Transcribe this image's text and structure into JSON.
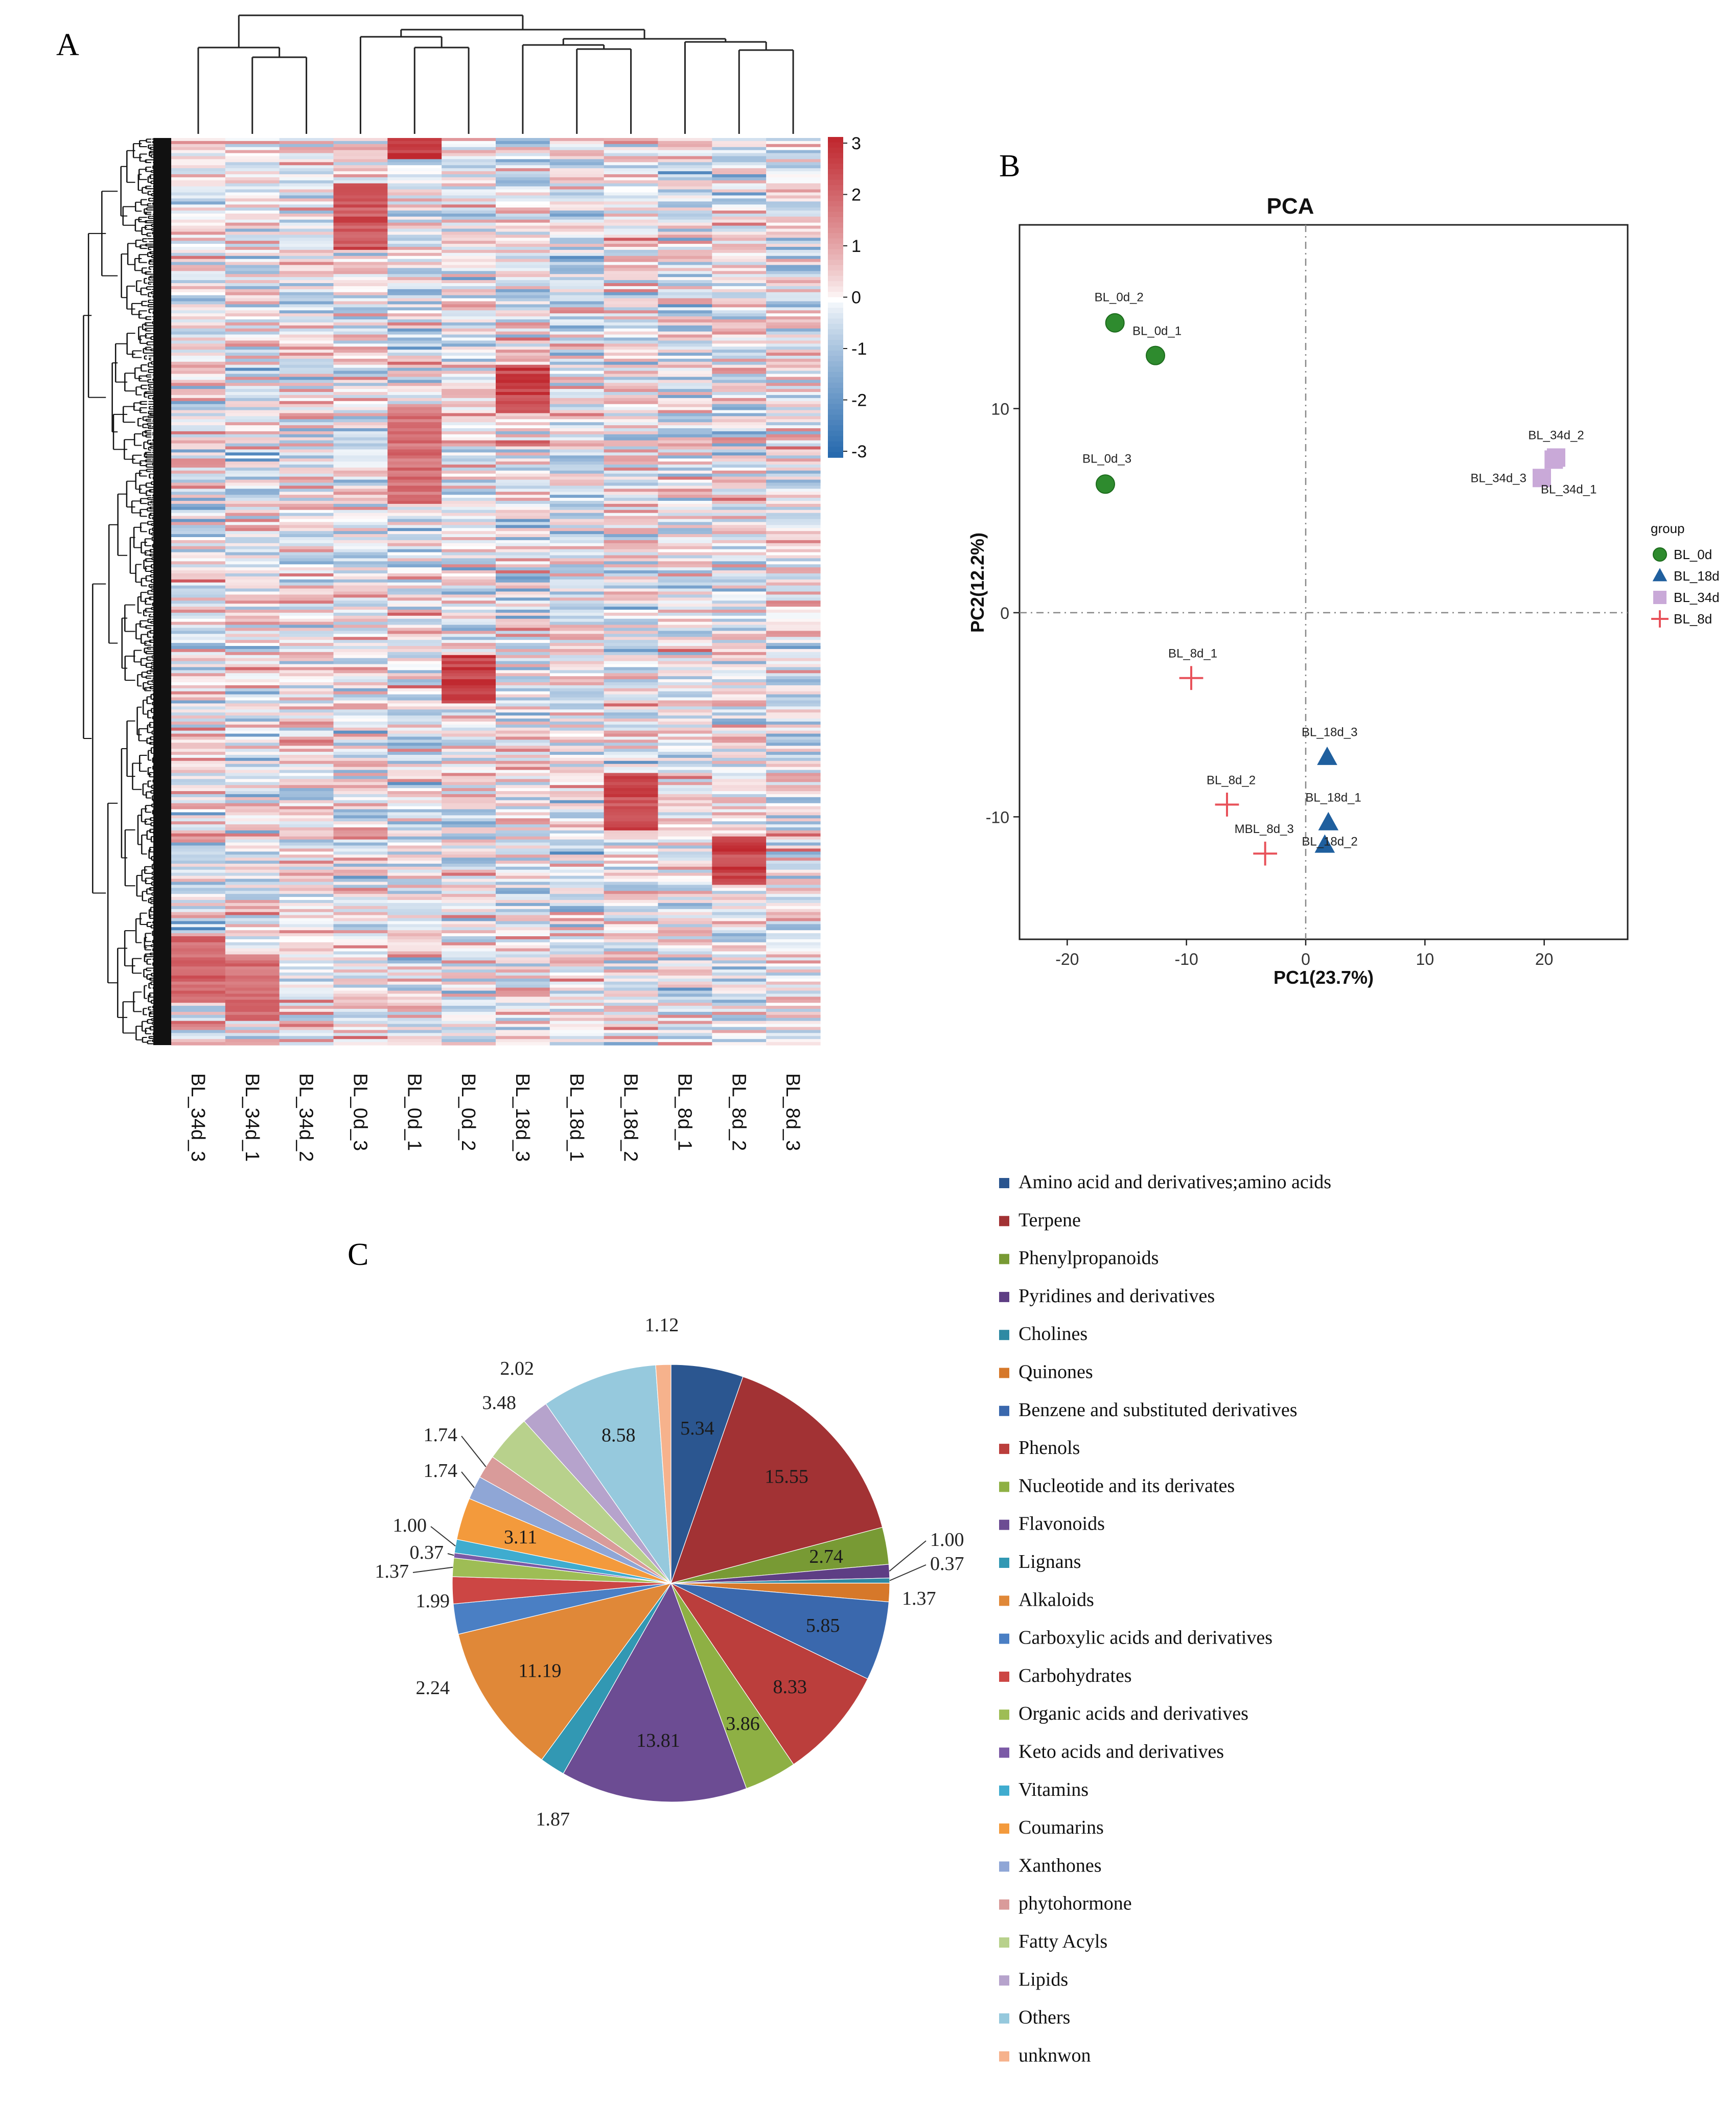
{
  "panels": {
    "a_label": "A",
    "b_label": "B",
    "c_label": "C"
  },
  "chart_data": [
    {
      "type": "heatmap",
      "title": "",
      "columns": [
        "BL_34d_3",
        "BL_34d_1",
        "BL_34d_2",
        "BL_0d_3",
        "BL_0d_1",
        "BL_0d_2",
        "BL_18d_3",
        "BL_18d_1",
        "BL_18d_2",
        "BL_8d_1",
        "BL_8d_2",
        "BL_8d_3"
      ],
      "colorbar": {
        "ticks": [
          "3",
          "2",
          "1",
          "0",
          "-1",
          "-2",
          "-3"
        ],
        "range": [
          -3,
          3
        ],
        "colors": [
          "#2166ac",
          "#ffffff",
          "#c0282f"
        ]
      },
      "n_rows": 300,
      "cluster_hotspots": [
        {
          "col": 4,
          "row_start": 0.0,
          "row_end": 0.02,
          "value": 3
        },
        {
          "col": 3,
          "row_start": 0.05,
          "row_end": 0.12,
          "value": 2.5
        },
        {
          "col": 6,
          "row_start": 0.25,
          "row_end": 0.3,
          "value": 2.8
        },
        {
          "col": 4,
          "row_start": 0.3,
          "row_end": 0.4,
          "value": 2
        },
        {
          "col": 5,
          "row_start": 0.57,
          "row_end": 0.62,
          "value": 3
        },
        {
          "col": 8,
          "row_start": 0.7,
          "row_end": 0.76,
          "value": 2.6
        },
        {
          "col": 10,
          "row_start": 0.77,
          "row_end": 0.82,
          "value": 2.8
        },
        {
          "col": 0,
          "row_start": 0.88,
          "row_end": 0.95,
          "value": 2.2
        },
        {
          "col": 1,
          "row_start": 0.9,
          "row_end": 0.97,
          "value": 2
        }
      ]
    },
    {
      "type": "scatter",
      "title": "PCA",
      "xlabel": "PC1(23.7%)",
      "ylabel": "PC2(12.2%)",
      "xlim": [
        -24,
        27
      ],
      "ylim": [
        -16,
        19
      ],
      "xticks": [
        -20,
        -10,
        0,
        10,
        20
      ],
      "yticks": [
        10,
        0,
        -10
      ],
      "legend_title": "group",
      "legend_position": "right",
      "series": [
        {
          "name": "BL_0d",
          "color": "#2e8b2e",
          "marker": "circle",
          "points": [
            {
              "label": "BL_0d_2",
              "x": -16,
              "y": 14.2
            },
            {
              "label": "BL_0d_1",
              "x": -12.6,
              "y": 12.6
            },
            {
              "label": "BL_0d_3",
              "x": -16.8,
              "y": 6.3
            }
          ]
        },
        {
          "name": "BL_18d",
          "color": "#1f5f9e",
          "marker": "triangle",
          "points": [
            {
              "label": "BL_18d_3",
              "x": 1.8,
              "y": -7.1
            },
            {
              "label": "BL_18d_1",
              "x": 1.9,
              "y": -10.3
            },
            {
              "label": "BL_18d_2",
              "x": 1.6,
              "y": -11.4
            }
          ]
        },
        {
          "name": "BL_34d",
          "color": "#c9a9d8",
          "marker": "square",
          "points": [
            {
              "label": "BL_34d_2",
              "x": 20.8,
              "y": 7.5
            },
            {
              "label": "BL_34d_3",
              "x": 19.8,
              "y": 6.6
            },
            {
              "label": "BL_34d_1",
              "x": 21.0,
              "y": 7.6
            }
          ]
        },
        {
          "name": "BL_8d",
          "color": "#e8525a",
          "marker": "cross",
          "points": [
            {
              "label": "BL_8d_1",
              "x": -9.6,
              "y": -3.2
            },
            {
              "label": "BL_8d_2",
              "x": -6.6,
              "y": -9.4
            },
            {
              "label": "MBL_8d_3",
              "x": -3.4,
              "y": -11.8
            }
          ]
        }
      ]
    },
    {
      "type": "pie",
      "title": "",
      "start": "top, clockwise",
      "slices": [
        {
          "label": "Amino acid and derivatives;amino acids",
          "value": 5.34,
          "color": "#2b5690",
          "text": "5.34"
        },
        {
          "label": "Terpene",
          "value": 15.55,
          "color": "#a23234",
          "text": "15.55"
        },
        {
          "label": "Phenylpropanoids",
          "value": 2.74,
          "color": "#789a34",
          "text": "2.74"
        },
        {
          "label": "Pyridines and derivatives",
          "value": 1.0,
          "color": "#5e3e84",
          "text": "1.00"
        },
        {
          "label": "Cholines",
          "value": 0.37,
          "color": "#2e8aa3",
          "text": "0.37"
        },
        {
          "label": "Quinones",
          "value": 1.37,
          "color": "#d6782a",
          "text": "1.37"
        },
        {
          "label": "Benzene and substituted derivatives",
          "value": 5.85,
          "color": "#3a68ad",
          "text": "5.85"
        },
        {
          "label": "Phenols",
          "value": 8.33,
          "color": "#bb3e3c",
          "text": "8.33"
        },
        {
          "label": "Nucleotide and its derivates",
          "value": 3.86,
          "color": "#8eb044",
          "text": "3.86"
        },
        {
          "label": "Flavonoids",
          "value": 13.81,
          "color": "#6c4c93",
          "text": "13.81"
        },
        {
          "label": "Lignans",
          "value": 1.87,
          "color": "#3298b3",
          "text": "1.87"
        },
        {
          "label": "Alkaloids",
          "value": 11.19,
          "color": "#e08838",
          "text": "11.19"
        },
        {
          "label": "Carboxylic acids and derivatives",
          "value": 2.24,
          "color": "#4a7fc4",
          "text": "2.24"
        },
        {
          "label": "Carbohydrates",
          "value": 1.99,
          "color": "#cc4644",
          "text": "1.99"
        },
        {
          "label": "Organic acids and derivatives",
          "value": 1.37,
          "color": "#9ebd55",
          "text": "1.37"
        },
        {
          "label": "Keto acids and derivatives",
          "value": 0.37,
          "color": "#7b5aa6",
          "text": "0.37"
        },
        {
          "label": "Vitamins",
          "value": 1.0,
          "color": "#3faccf",
          "text": "1.00"
        },
        {
          "label": "Coumarins",
          "value": 3.11,
          "color": "#f39a3c",
          "text": "3.11"
        },
        {
          "label": "Xanthones",
          "value": 1.74,
          "color": "#8fa6d6",
          "text": "1.74"
        },
        {
          "label": "phytohormone",
          "value": 1.74,
          "color": "#d99b9a",
          "text": "1.74"
        },
        {
          "label": "Fatty Acyls",
          "value": 3.48,
          "color": "#b8d18c",
          "text": "3.48"
        },
        {
          "label": "Lipids",
          "value": 2.02,
          "color": "#b6a3cc",
          "text": "2.02"
        },
        {
          "label": "Others",
          "value": 8.58,
          "color": "#96c9dd",
          "text": "8.58"
        },
        {
          "label": "unknwon",
          "value": 1.12,
          "color": "#f6b28c",
          "text": "1.12"
        }
      ]
    }
  ]
}
